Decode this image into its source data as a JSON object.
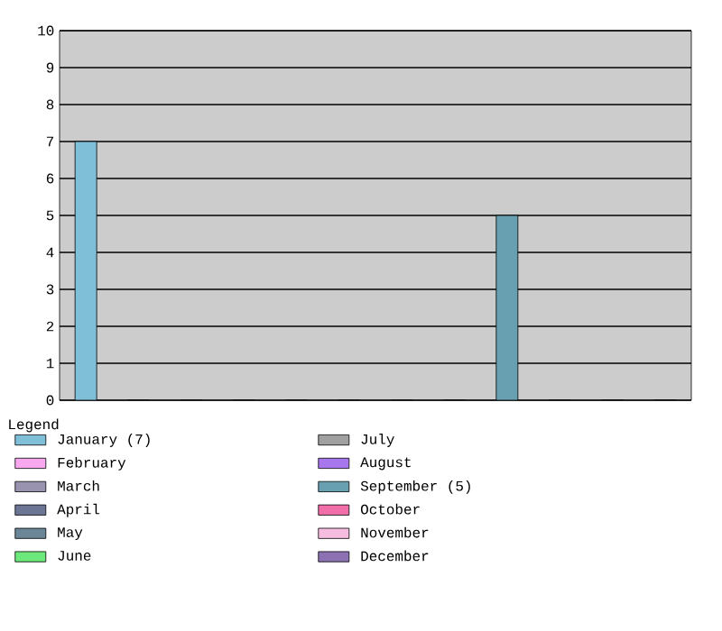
{
  "chart_data": {
    "type": "bar",
    "legend_title": "Legend",
    "categories": [
      null,
      null,
      null,
      null,
      null,
      null,
      null,
      null,
      null,
      null,
      null,
      null
    ],
    "series": [
      {
        "name": "January (7)",
        "color": "#7fbfd7",
        "values": [
          7,
          null,
          null,
          null,
          null,
          null,
          null,
          null,
          null,
          null,
          null,
          null
        ]
      },
      {
        "name": "February",
        "color": "#f9a8f0",
        "values": [
          null,
          0,
          null,
          null,
          null,
          null,
          null,
          null,
          null,
          null,
          null,
          null
        ]
      },
      {
        "name": "March",
        "color": "#9a93b0",
        "values": [
          null,
          null,
          0,
          null,
          null,
          null,
          null,
          null,
          null,
          null,
          null,
          null
        ]
      },
      {
        "name": "April",
        "color": "#6d7595",
        "values": [
          null,
          null,
          null,
          0,
          null,
          null,
          null,
          null,
          null,
          null,
          null,
          null
        ]
      },
      {
        "name": "May",
        "color": "#6b8696",
        "values": [
          null,
          null,
          null,
          null,
          0,
          null,
          null,
          null,
          null,
          null,
          null,
          null
        ]
      },
      {
        "name": "June",
        "color": "#6de87a",
        "values": [
          null,
          null,
          null,
          null,
          null,
          0,
          null,
          null,
          null,
          null,
          null,
          null
        ]
      },
      {
        "name": "July",
        "color": "#a0a0a0",
        "values": [
          null,
          null,
          null,
          null,
          null,
          null,
          0,
          null,
          null,
          null,
          null,
          null
        ]
      },
      {
        "name": "August",
        "color": "#a877ee",
        "values": [
          null,
          null,
          null,
          null,
          null,
          null,
          null,
          0,
          null,
          null,
          null,
          null
        ]
      },
      {
        "name": "September (5)",
        "color": "#68a0b2",
        "values": [
          null,
          null,
          null,
          null,
          null,
          null,
          null,
          null,
          5,
          null,
          null,
          null
        ]
      },
      {
        "name": "October",
        "color": "#f26ea8",
        "values": [
          null,
          null,
          null,
          null,
          null,
          null,
          null,
          null,
          null,
          0,
          null,
          null
        ]
      },
      {
        "name": "November",
        "color": "#f7bde1",
        "values": [
          null,
          null,
          null,
          null,
          null,
          null,
          null,
          null,
          null,
          null,
          0,
          null
        ]
      },
      {
        "name": "December",
        "color": "#8c72b3",
        "values": [
          null,
          null,
          null,
          null,
          null,
          null,
          null,
          null,
          null,
          null,
          null,
          0
        ]
      }
    ],
    "ylim": [
      0,
      10
    ],
    "yticks": [
      0,
      1,
      2,
      3,
      4,
      5,
      6,
      7,
      8,
      9,
      10
    ],
    "grid": "y",
    "legend": "bottom",
    "tick_labels": "y"
  }
}
